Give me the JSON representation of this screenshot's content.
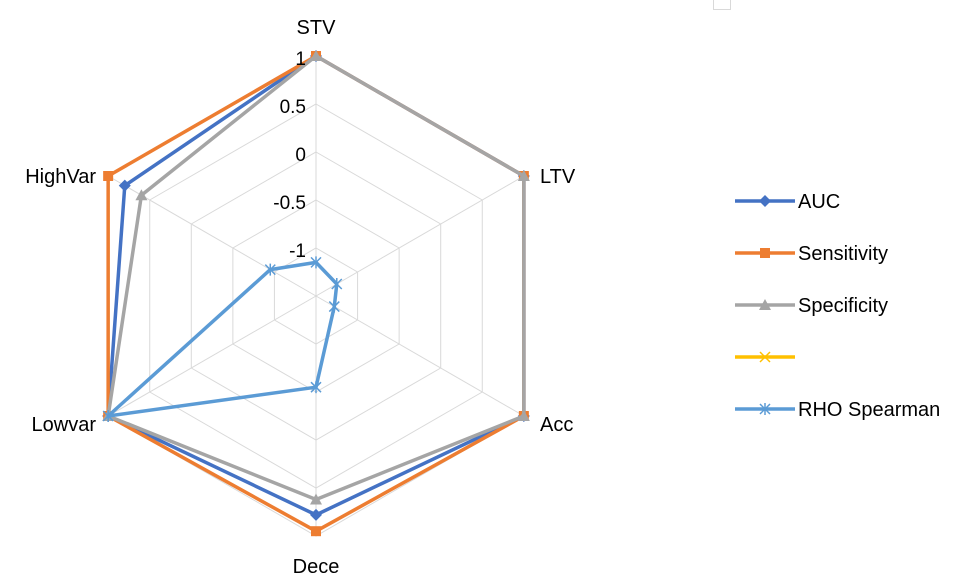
{
  "chart_data": {
    "type": "radar",
    "axes": [
      "STV",
      "LTV",
      "Acc",
      "Dece",
      "Lowvar",
      "HighVar"
    ],
    "rlim": [
      -1.5,
      1
    ],
    "ticks": [
      "1",
      "0.5",
      "0",
      "-0.5",
      "-1"
    ],
    "tick_values": [
      1,
      0.5,
      0,
      -0.5,
      -1
    ],
    "grid": true,
    "legend_position": "right",
    "series": [
      {
        "name": "AUC",
        "color": "#4472C4",
        "marker": "diamond",
        "values": [
          1,
          1,
          1,
          0.78,
          1,
          0.8
        ]
      },
      {
        "name": "Sensitivity",
        "color": "#ED7D31",
        "marker": "square",
        "values": [
          1,
          1,
          1,
          0.95,
          1,
          1
        ]
      },
      {
        "name": "Specificity",
        "color": "#A5A5A5",
        "marker": "triangle",
        "values": [
          1,
          1,
          1,
          0.62,
          1,
          0.6
        ]
      },
      {
        "name": "",
        "color": "#FFC000",
        "marker": "x",
        "values": []
      },
      {
        "name": "RHO Spearman",
        "color": "#5B9BD5",
        "marker": "asterisk",
        "values": [
          -1.15,
          -1.25,
          -1.28,
          -0.55,
          1,
          -0.95
        ]
      }
    ]
  }
}
